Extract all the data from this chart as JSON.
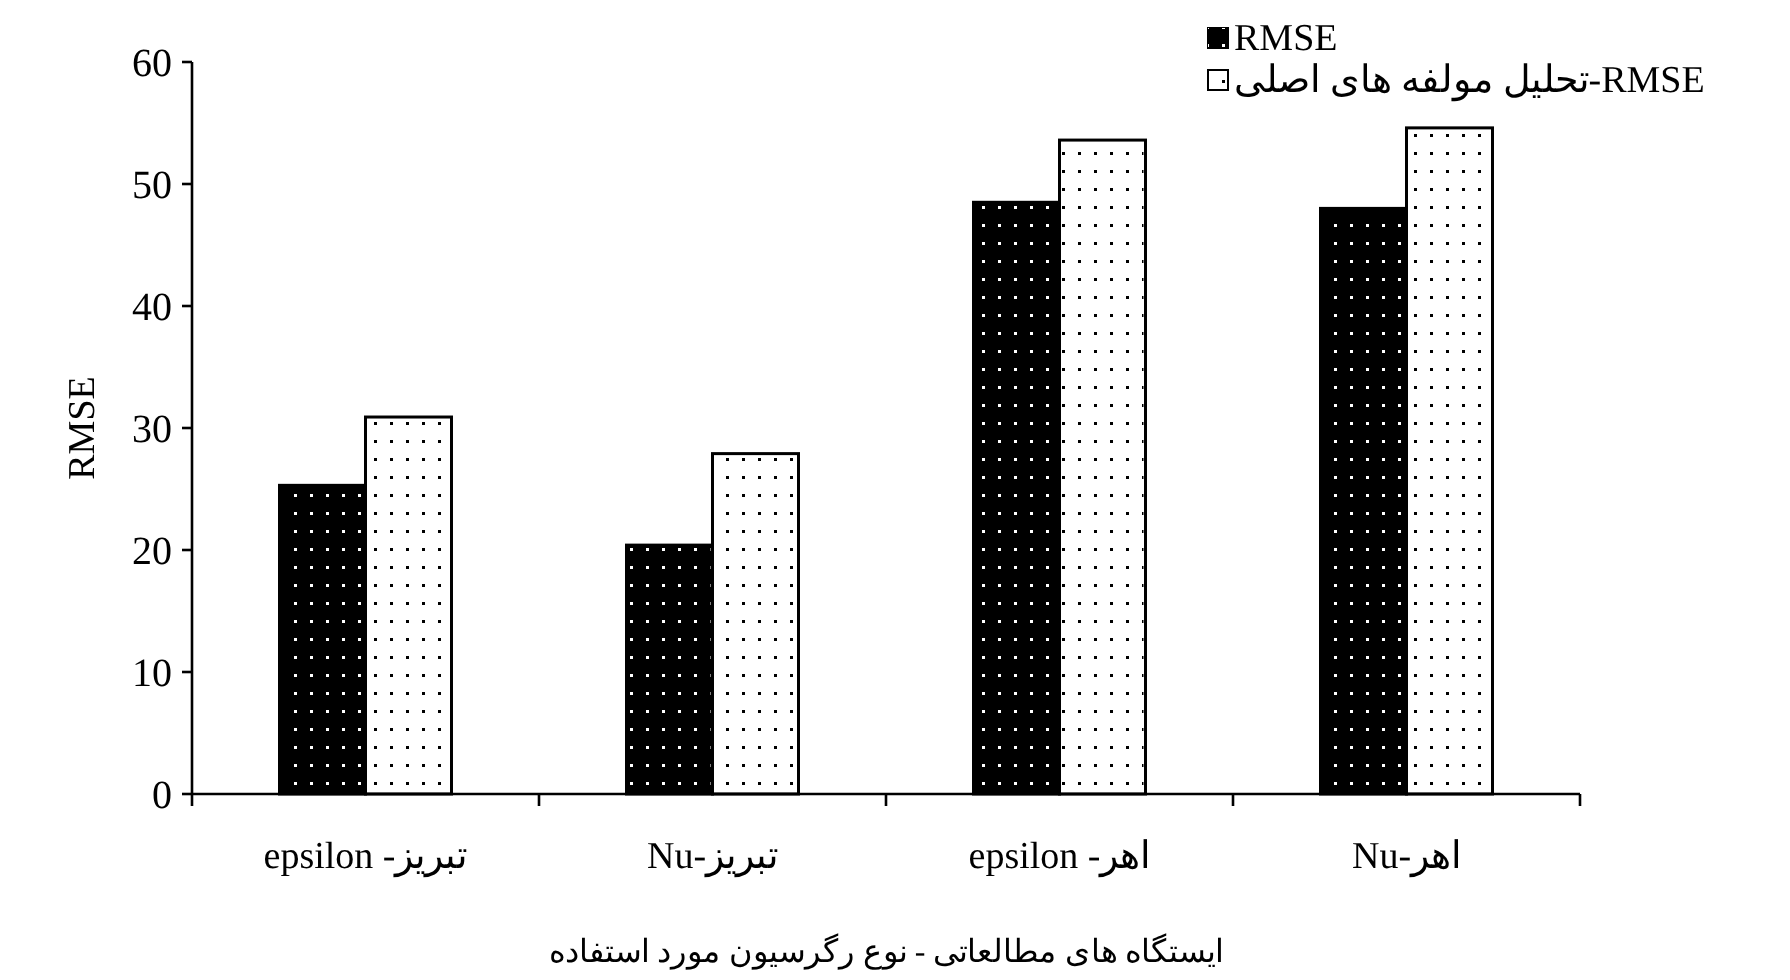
{
  "chart_data": {
    "type": "bar",
    "xlabel": "ایستگاه های مطالعاتی - نوع رگرسیون مورد استفاده",
    "ylabel": "RMSE",
    "categories": [
      "تبریز- epsilon",
      "تبریز-Nu",
      "اهر- epsilon",
      "اهر-Nu"
    ],
    "series": [
      {
        "name": "RMSE",
        "color": "#000000",
        "values": [
          25.3,
          20.4,
          48.5,
          48.0
        ]
      },
      {
        "name": "RMSE-تحلیل مولفه های اصلی",
        "color": "#ffffff",
        "values": [
          30.9,
          27.9,
          53.6,
          54.6
        ]
      }
    ],
    "ylim": [
      0,
      60
    ],
    "yticks": [
      0,
      10,
      20,
      30,
      40,
      50,
      60
    ],
    "grid": false,
    "legend": "top right"
  }
}
